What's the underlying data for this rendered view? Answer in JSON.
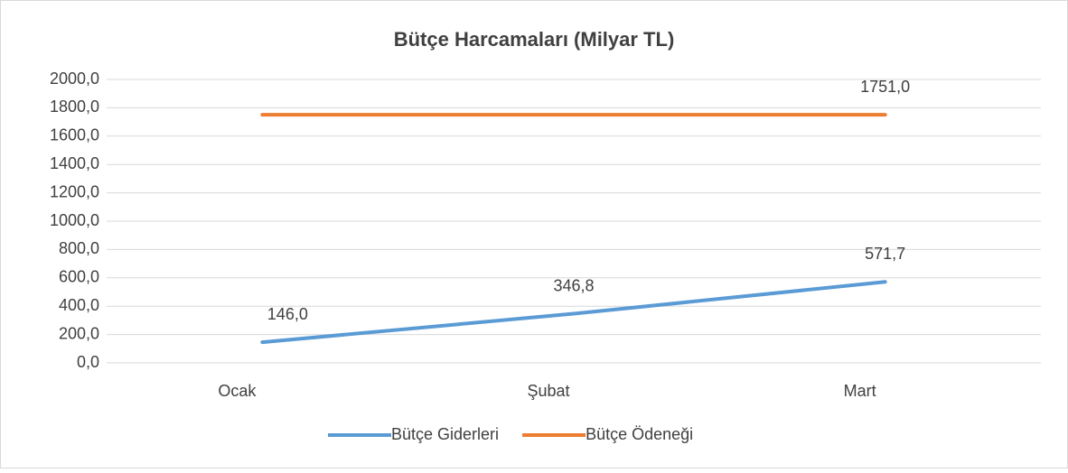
{
  "chart_data": {
    "type": "line",
    "title": "Bütçe Harcamaları (Milyar TL)",
    "categories": [
      "Ocak",
      "Şubat",
      "Mart"
    ],
    "series": [
      {
        "name": "Bütçe Giderleri",
        "color": "#5b9bd5",
        "values": [
          146.0,
          346.8,
          571.7
        ],
        "value_labels": [
          "146,0",
          "346,8",
          "571,7"
        ]
      },
      {
        "name": "Bütçe Ödeneği",
        "color": "#ed7d31",
        "values": [
          1751.0,
          1751.0,
          1751.0
        ],
        "value_labels": [
          null,
          null,
          "1751,0"
        ]
      }
    ],
    "ylim": [
      0,
      2000
    ],
    "yticks": [
      {
        "value": 0,
        "label": "0,0"
      },
      {
        "value": 200,
        "label": "200,0"
      },
      {
        "value": 400,
        "label": "400,0"
      },
      {
        "value": 600,
        "label": "600,0"
      },
      {
        "value": 800,
        "label": "800,0"
      },
      {
        "value": 1000,
        "label": "1000,0"
      },
      {
        "value": 1200,
        "label": "1200,0"
      },
      {
        "value": 1400,
        "label": "1400,0"
      },
      {
        "value": 1600,
        "label": "1600,0"
      },
      {
        "value": 1800,
        "label": "1800,0"
      },
      {
        "value": 2000,
        "label": "2000,0"
      }
    ],
    "grid": true,
    "legend": "bottom"
  }
}
